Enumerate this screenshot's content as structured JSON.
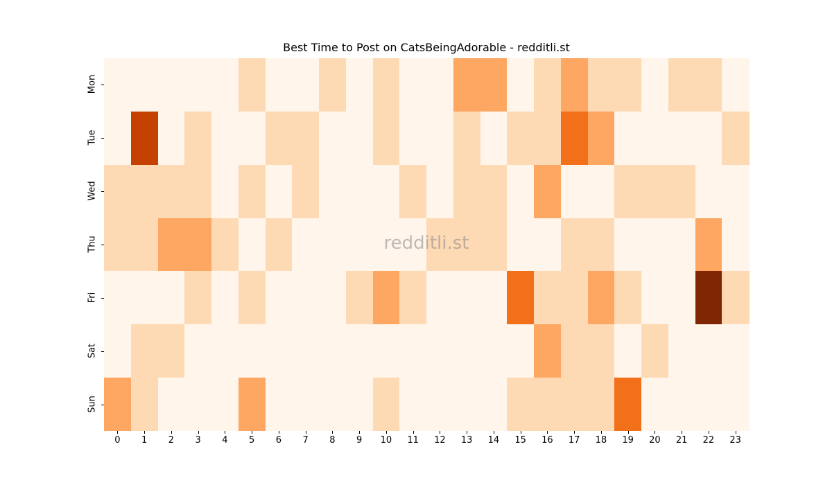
{
  "chart_data": {
    "type": "heatmap",
    "title": "Best Time to Post on CatsBeingAdorable - redditli.st",
    "xlabel": "",
    "ylabel": "",
    "x": [
      "0",
      "1",
      "2",
      "3",
      "4",
      "5",
      "6",
      "7",
      "8",
      "9",
      "10",
      "11",
      "12",
      "13",
      "14",
      "15",
      "16",
      "17",
      "18",
      "19",
      "20",
      "21",
      "22",
      "23"
    ],
    "y": [
      "Mon",
      "Tue",
      "Wed",
      "Thu",
      "Fri",
      "Sat",
      "Sun"
    ],
    "colormap": "Oranges",
    "level_colors": [
      "#fff5eb",
      "#fdd9b4",
      "#fda762",
      "#f3701b",
      "#c54102",
      "#7f2704"
    ],
    "values": [
      [
        0,
        0,
        0,
        0,
        0,
        1,
        0,
        0,
        1,
        0,
        1,
        0,
        0,
        2,
        2,
        0,
        1,
        2,
        1,
        1,
        0,
        1,
        1,
        0
      ],
      [
        0,
        4,
        0,
        1,
        0,
        0,
        1,
        1,
        0,
        0,
        1,
        0,
        0,
        1,
        0,
        1,
        1,
        3,
        2,
        0,
        0,
        0,
        0,
        1
      ],
      [
        1,
        1,
        1,
        1,
        0,
        1,
        0,
        1,
        0,
        0,
        0,
        1,
        0,
        1,
        1,
        0,
        2,
        0,
        0,
        1,
        1,
        1,
        0,
        0
      ],
      [
        1,
        1,
        2,
        2,
        1,
        0,
        1,
        0,
        0,
        0,
        0,
        0,
        1,
        1,
        1,
        0,
        0,
        1,
        1,
        0,
        0,
        0,
        2,
        0
      ],
      [
        0,
        0,
        0,
        1,
        0,
        1,
        0,
        0,
        0,
        1,
        2,
        1,
        0,
        0,
        0,
        3,
        1,
        1,
        2,
        1,
        0,
        0,
        5,
        1
      ],
      [
        0,
        1,
        1,
        0,
        0,
        0,
        0,
        0,
        0,
        0,
        0,
        0,
        0,
        0,
        0,
        0,
        2,
        1,
        1,
        0,
        1,
        0,
        0,
        0
      ],
      [
        2,
        1,
        0,
        0,
        0,
        2,
        0,
        0,
        0,
        0,
        1,
        0,
        0,
        0,
        0,
        1,
        1,
        1,
        1,
        3,
        0,
        0,
        0,
        0
      ]
    ],
    "colorbar": false,
    "grid": false,
    "annotations": [
      {
        "text": "redditli.st",
        "type": "watermark",
        "position": "center"
      }
    ]
  }
}
